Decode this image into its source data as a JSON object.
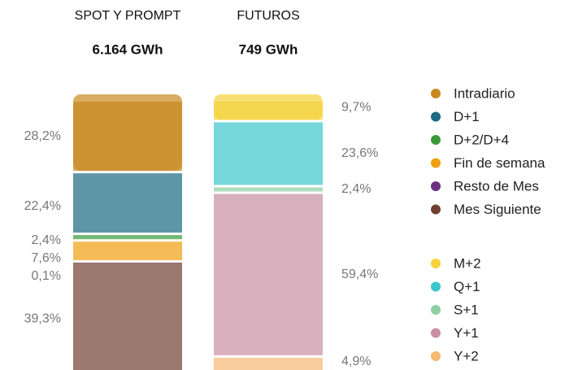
{
  "chart_data": {
    "type": "stacked-bar-100",
    "bars": [
      {
        "label": "SPOT Y PROMPT",
        "total": "6.164 GWh",
        "segments": [
          {
            "name": "Intradiario",
            "color": "#c8891e",
            "value": 28.2,
            "value_label": "28,2%"
          },
          {
            "name": "D+1",
            "color": "#1b6a80",
            "value": 22.4,
            "value_label": "22,4%"
          },
          {
            "name": "D+2/D+4",
            "color": "#3a9a3a",
            "value": 2.4,
            "value_label": "2,4%"
          },
          {
            "name": "Fin de semana",
            "color": "#f0a010",
            "value": 7.6,
            "value_label": "7,6%"
          },
          {
            "name": "Resto de Mes",
            "color": "#6a3080",
            "value": 0.1,
            "value_label": "0,1%"
          },
          {
            "name": "Mes Siguiente",
            "color": "#704030",
            "value": 39.3,
            "value_label": "39,3%"
          }
        ]
      },
      {
        "label": "FUTUROS",
        "total": "749 GWh",
        "segments": [
          {
            "name": "M+2",
            "color": "#f5d23a",
            "value": 9.7,
            "value_label": "9,7%"
          },
          {
            "name": "Q+1",
            "color": "#3cc6cc",
            "value": 23.6,
            "value_label": "23,6%"
          },
          {
            "name": "S+1",
            "color": "#8ccfa0",
            "value": 2.4,
            "value_label": "2,4%"
          },
          {
            "name": "Y+1",
            "color": "#c98fa3",
            "value": 59.4,
            "value_label": "59,4%"
          },
          {
            "name": "Y+2",
            "color": "#f7b870",
            "value": 4.9,
            "value_label": "4,9%"
          }
        ]
      }
    ]
  }
}
